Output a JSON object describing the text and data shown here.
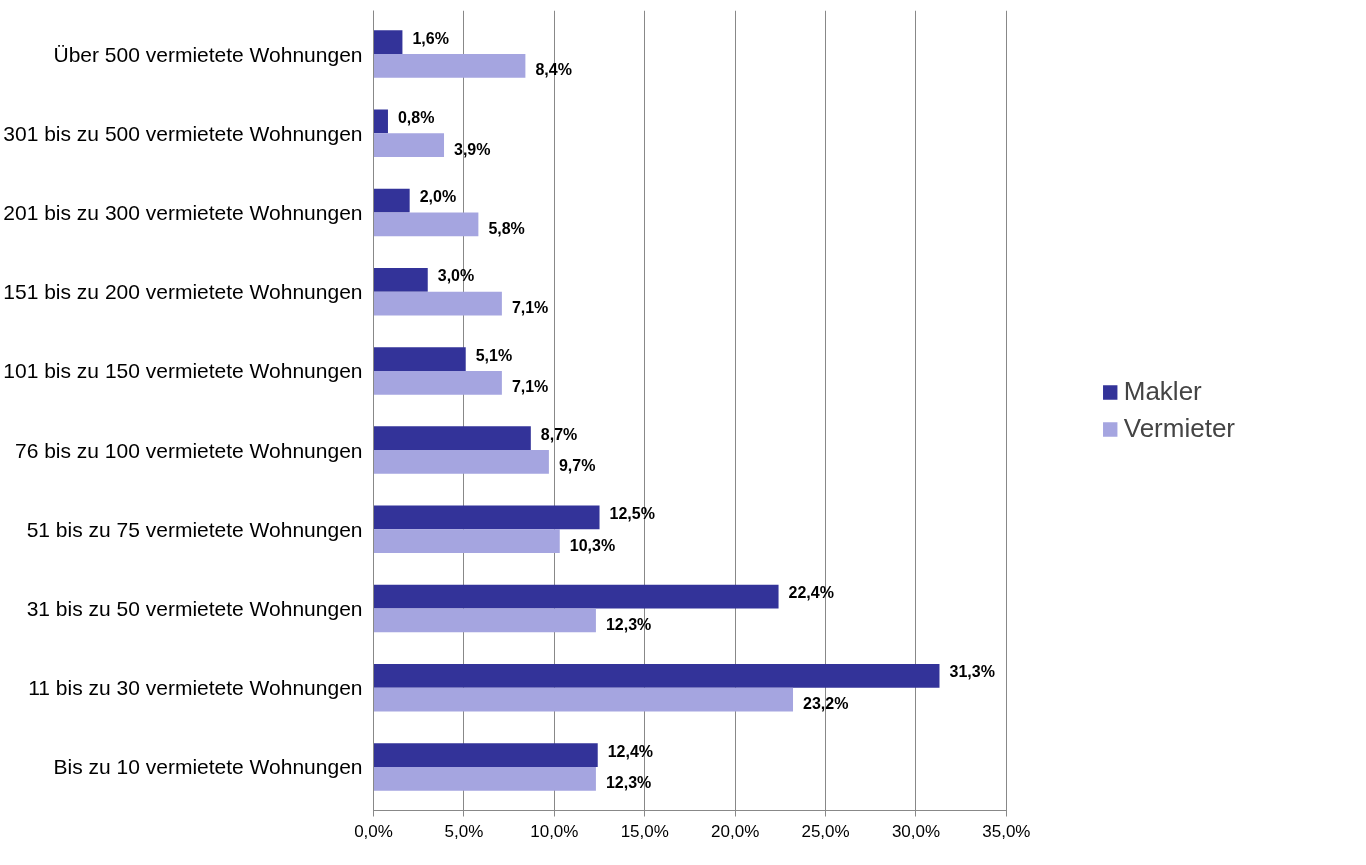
{
  "chart_data": {
    "type": "bar",
    "orientation": "horizontal",
    "categories": [
      "Über 500 vermietete Wohnungen",
      "301 bis zu 500 vermietete Wohnungen",
      "201 bis zu 300 vermietete Wohnungen",
      "151 bis zu 200 vermietete Wohnungen",
      "101 bis zu 150 vermietete Wohnungen",
      "76 bis zu 100 vermietete Wohnungen",
      "51 bis zu 75 vermietete Wohnungen",
      "31 bis zu 50 vermietete Wohnungen",
      "11 bis zu 30 vermietete Wohnungen",
      "Bis zu 10 vermietete Wohnungen"
    ],
    "series": [
      {
        "name": "Makler",
        "color": "#333399",
        "values": [
          1.6,
          0.8,
          2.0,
          3.0,
          5.1,
          8.7,
          12.5,
          22.4,
          31.3,
          12.4
        ],
        "value_labels": [
          "1,6%",
          "0,8%",
          "2,0%",
          "3,0%",
          "5,1%",
          "8,7%",
          "12,5%",
          "22,4%",
          "31,3%",
          "12,4%"
        ]
      },
      {
        "name": "Vermieter",
        "color": "#a5a5e0",
        "values": [
          8.4,
          3.9,
          5.8,
          7.1,
          7.1,
          9.7,
          10.3,
          12.3,
          23.2,
          12.3
        ],
        "value_labels": [
          "8,4%",
          "3,9%",
          "5,8%",
          "7,1%",
          "7,1%",
          "9,7%",
          "10,3%",
          "12,3%",
          "23,2%",
          "12,3%"
        ]
      }
    ],
    "xlim": [
      0,
      35
    ],
    "xticks": [
      {
        "value": 0,
        "label": "0,0%"
      },
      {
        "value": 5,
        "label": "5,0%"
      },
      {
        "value": 10,
        "label": "10,0%"
      },
      {
        "value": 15,
        "label": "15,0%"
      },
      {
        "value": 20,
        "label": "20,0%"
      },
      {
        "value": 25,
        "label": "25,0%"
      },
      {
        "value": 30,
        "label": "30,0%"
      },
      {
        "value": 35,
        "label": "35,0%"
      }
    ],
    "grid": "x",
    "legend": "right"
  }
}
